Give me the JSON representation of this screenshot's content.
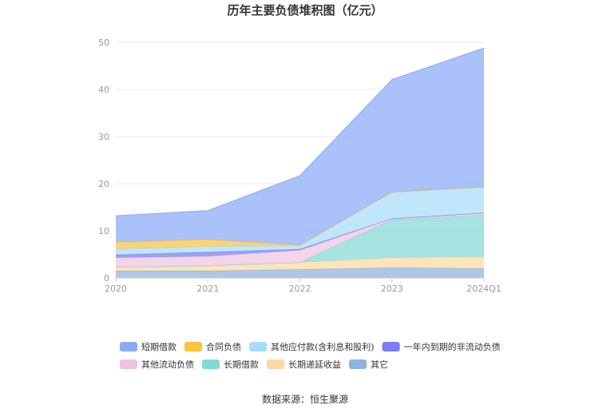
{
  "chart_data": {
    "type": "area",
    "stacked": true,
    "title": "历年主要负债堆积图（亿元）",
    "x": [
      "2020",
      "2021",
      "2022",
      "2023",
      "2024Q1"
    ],
    "ylim": [
      0,
      50
    ],
    "yticks": [
      "0",
      "10",
      "20",
      "30",
      "40",
      "50"
    ],
    "grid": true,
    "legend_position": "bottom",
    "series": [
      {
        "name": "其它",
        "color": "#8fb1e0",
        "values": [
          1.5,
          1.5,
          1.8,
          2.2,
          2.0
        ]
      },
      {
        "name": "长期递延收益",
        "color": "#fcd9a0",
        "values": [
          0.8,
          1.1,
          1.5,
          2.1,
          2.5
        ]
      },
      {
        "name": "长期借款",
        "color": "#83d9d5",
        "values": [
          0,
          0,
          0,
          8.0,
          8.8
        ]
      },
      {
        "name": "其他流动负债",
        "color": "#efc3e0",
        "values": [
          2.0,
          2.0,
          2.6,
          0.3,
          0.5
        ]
      },
      {
        "name": "一年内到期的非流动负债",
        "color": "#7b7df0",
        "values": [
          0.6,
          0.9,
          0.2,
          0,
          0
        ]
      },
      {
        "name": "其他应付款(含利息和股利)",
        "color": "#a8dcfb",
        "values": [
          1.3,
          1.2,
          0.8,
          5.6,
          5.5
        ]
      },
      {
        "name": "合同负债",
        "color": "#fbc43d",
        "values": [
          1.4,
          1.5,
          0.1,
          0,
          0
        ]
      },
      {
        "name": "短期借款",
        "color": "#8aa9f8",
        "values": [
          5.6,
          6.1,
          14.7,
          23.9,
          29.5
        ]
      }
    ],
    "legend_order": [
      "短期借款",
      "合同负债",
      "其他应付款(含利息和股利)",
      "一年内到期的非流动负债",
      "其他流动负债",
      "长期借款",
      "长期递延收益",
      "其它"
    ],
    "source": "数据来源：恒生聚源"
  }
}
